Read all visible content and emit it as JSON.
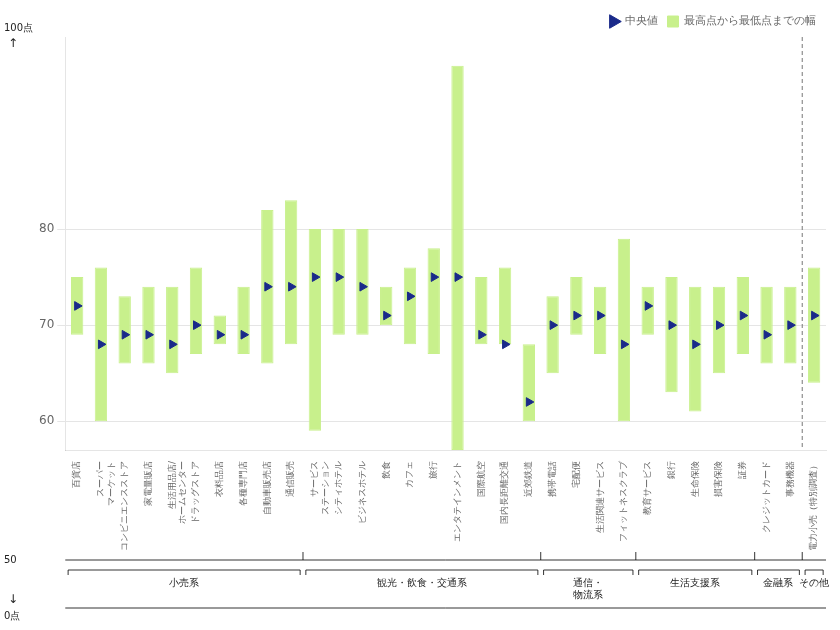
{
  "chart_data": {
    "type": "bar",
    "categories": [
      "百貨店",
      "スーパー\nマーケット",
      "コンビニエンスストア",
      "家電量販店",
      "生活用品店/\nホームセンター",
      "ドラッグストア",
      "衣料品店",
      "各種専門店",
      "自動車販売店",
      "通信販売",
      "サービス\nステーション",
      "シティホテル",
      "ビジネスホテル",
      "飲食",
      "カフェ",
      "旅行",
      "エンタテインメント",
      "国際航空",
      "国内長距離交通",
      "近郊鉄道",
      "携帯電話",
      "宅配便",
      "生活関連サービス",
      "フィットネスクラブ",
      "教育サービス",
      "銀行",
      "生命保険",
      "損害保険",
      "証券",
      "クレジットカード",
      "事務機器",
      "電力小売（特別調査）"
    ],
    "series": [
      {
        "name": "最高点から最低点までの幅",
        "type": "bar",
        "color": "#c8f08c",
        "low": [
          69,
          60,
          66,
          66,
          65,
          67,
          68,
          67,
          66,
          68,
          59,
          69,
          69,
          70,
          68,
          67,
          57,
          68,
          68,
          60,
          65,
          69,
          67,
          60,
          69,
          63,
          61,
          65,
          67,
          66,
          66,
          64
        ],
        "high": [
          75,
          76,
          73,
          74,
          74,
          76,
          71,
          74,
          82,
          83,
          80,
          80,
          80,
          74,
          76,
          78,
          97,
          75,
          76,
          68,
          73,
          75,
          74,
          79,
          74,
          75,
          74,
          74,
          75,
          74,
          74,
          76
        ]
      },
      {
        "name": "中央値",
        "type": "scatter",
        "marker": "triangle",
        "color": "#1a2a8a",
        "values": [
          72,
          68,
          69,
          69,
          68,
          70,
          69,
          69,
          74,
          74,
          75,
          75,
          74,
          71,
          73,
          75,
          75,
          69,
          68,
          62,
          70,
          71,
          71,
          68,
          72,
          70,
          68,
          70,
          71,
          69,
          70,
          71
        ]
      }
    ],
    "ylim": [
      57,
      100
    ],
    "yticks": [
      60,
      70,
      80
    ],
    "grid": true,
    "legend": "upper right",
    "groups": [
      {
        "label": "小売系",
        "start": 0,
        "end": 9
      },
      {
        "label": "観光・飲食・交通系",
        "start": 10,
        "end": 19
      },
      {
        "label": "通信・\n物流系",
        "start": 20,
        "end": 23
      },
      {
        "label": "生活支援系",
        "start": 24,
        "end": 28
      },
      {
        "label": "金融系",
        "start": 29,
        "end": 30
      },
      {
        "label": "その他",
        "start": 31,
        "end": 31
      }
    ],
    "annotations": [
      "100点",
      "↑",
      "50",
      "↓",
      "0点"
    ]
  }
}
